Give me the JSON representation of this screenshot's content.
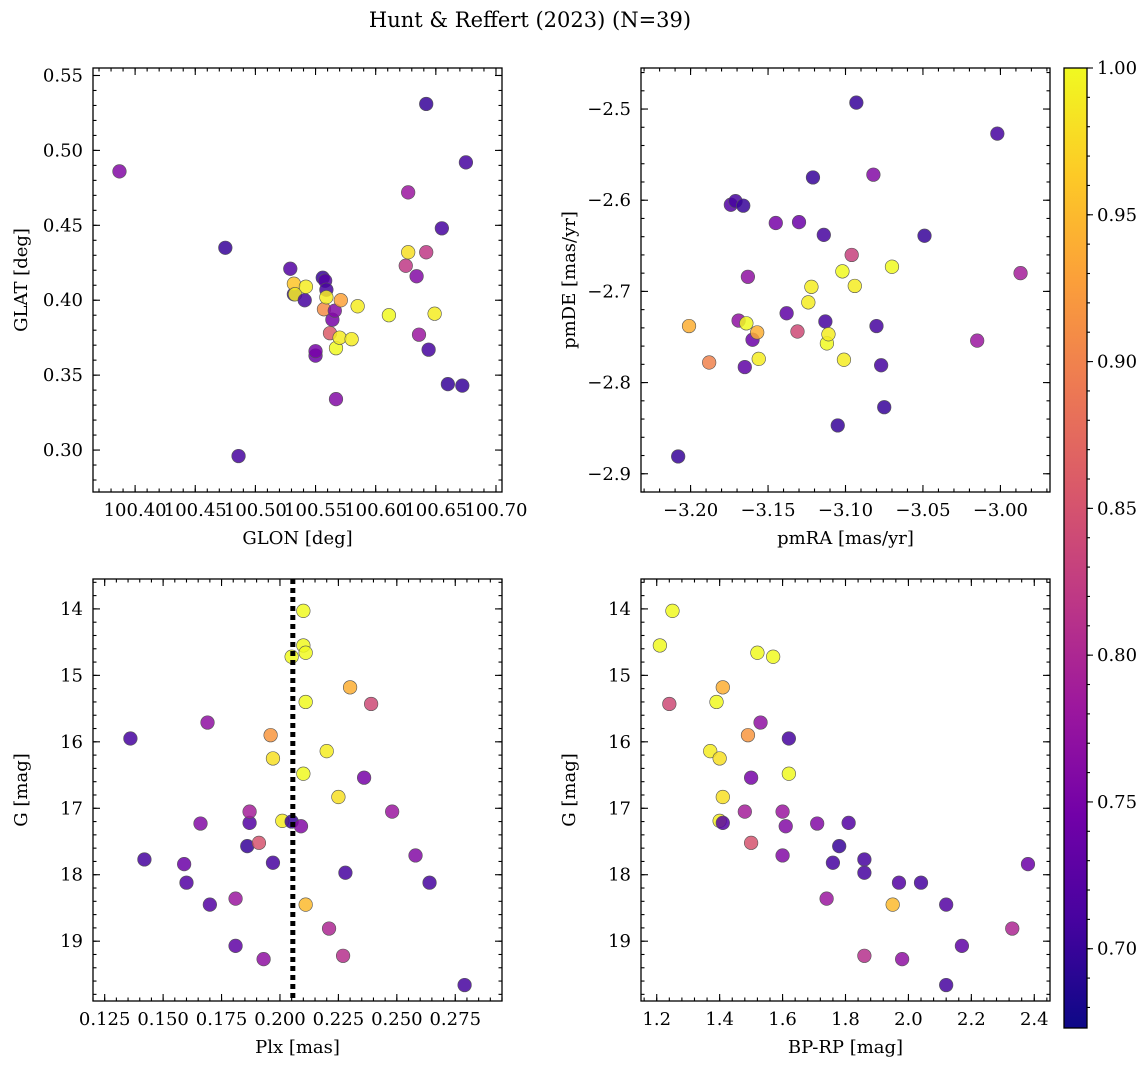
{
  "title": "Hunt & Reffert (2023) (N=39)",
  "colormap": [
    "#0d0887",
    "#46039f",
    "#7201a8",
    "#9c179e",
    "#bd3786",
    "#d8576b",
    "#ed7953",
    "#fb9f3a",
    "#fdca26",
    "#f0f921"
  ],
  "chart_data": [
    {
      "type": "scatter",
      "xlabel": "GLON [deg]",
      "ylabel": "GLAT [deg]",
      "xlim": [
        100.365,
        100.705
      ],
      "ylim": [
        0.272,
        0.555
      ],
      "xticks": [
        100.4,
        100.45,
        100.5,
        100.55,
        100.6,
        100.65,
        100.7
      ],
      "xtick_labels": [
        "100.40",
        "100.45",
        "100.50",
        "100.55",
        "100.60",
        "100.65",
        "100.70"
      ],
      "yticks": [
        0.3,
        0.35,
        0.4,
        0.45,
        0.5,
        0.55
      ],
      "ytick_labels": [
        "0.30",
        "0.35",
        "0.40",
        "0.45",
        "0.50",
        "0.55"
      ],
      "points": [
        {
          "x": 100.387,
          "y": 0.486,
          "c": 0.76
        },
        {
          "x": 100.475,
          "y": 0.435,
          "c": 0.7
        },
        {
          "x": 100.486,
          "y": 0.296,
          "c": 0.71
        },
        {
          "x": 100.529,
          "y": 0.421,
          "c": 0.72
        },
        {
          "x": 100.532,
          "y": 0.404,
          "c": 0.7
        },
        {
          "x": 100.532,
          "y": 0.411,
          "c": 0.96
        },
        {
          "x": 100.533,
          "y": 0.404,
          "c": 0.99
        },
        {
          "x": 100.541,
          "y": 0.4,
          "c": 0.71
        },
        {
          "x": 100.542,
          "y": 0.409,
          "c": 0.99
        },
        {
          "x": 100.55,
          "y": 0.363,
          "c": 0.74
        },
        {
          "x": 100.55,
          "y": 0.366,
          "c": 0.75
        },
        {
          "x": 100.556,
          "y": 0.415,
          "c": 0.7
        },
        {
          "x": 100.557,
          "y": 0.394,
          "c": 0.91
        },
        {
          "x": 100.558,
          "y": 0.413,
          "c": 0.72
        },
        {
          "x": 100.559,
          "y": 0.407,
          "c": 0.71
        },
        {
          "x": 100.559,
          "y": 0.402,
          "c": 0.99
        },
        {
          "x": 100.562,
          "y": 0.378,
          "c": 0.86
        },
        {
          "x": 100.564,
          "y": 0.387,
          "c": 0.75
        },
        {
          "x": 100.566,
          "y": 0.393,
          "c": 0.76
        },
        {
          "x": 100.567,
          "y": 0.334,
          "c": 0.76
        },
        {
          "x": 100.567,
          "y": 0.368,
          "c": 1.0
        },
        {
          "x": 100.57,
          "y": 0.375,
          "c": 0.99
        },
        {
          "x": 100.571,
          "y": 0.4,
          "c": 0.93
        },
        {
          "x": 100.58,
          "y": 0.374,
          "c": 0.99
        },
        {
          "x": 100.585,
          "y": 0.396,
          "c": 0.99
        },
        {
          "x": 100.611,
          "y": 0.39,
          "c": 1.0
        },
        {
          "x": 100.625,
          "y": 0.423,
          "c": 0.82
        },
        {
          "x": 100.627,
          "y": 0.432,
          "c": 0.98
        },
        {
          "x": 100.627,
          "y": 0.472,
          "c": 0.78
        },
        {
          "x": 100.634,
          "y": 0.416,
          "c": 0.76
        },
        {
          "x": 100.636,
          "y": 0.377,
          "c": 0.78
        },
        {
          "x": 100.642,
          "y": 0.432,
          "c": 0.82
        },
        {
          "x": 100.642,
          "y": 0.531,
          "c": 0.7
        },
        {
          "x": 100.644,
          "y": 0.367,
          "c": 0.71
        },
        {
          "x": 100.649,
          "y": 0.391,
          "c": 0.99
        },
        {
          "x": 100.655,
          "y": 0.448,
          "c": 0.71
        },
        {
          "x": 100.66,
          "y": 0.344,
          "c": 0.7
        },
        {
          "x": 100.672,
          "y": 0.343,
          "c": 0.7
        },
        {
          "x": 100.675,
          "y": 0.492,
          "c": 0.71
        }
      ]
    },
    {
      "type": "scatter",
      "xlabel": "pmRA [mas/yr]",
      "ylabel": "pmDE [mas/yr]",
      "xlim": [
        -3.232,
        -2.968
      ],
      "ylim": [
        -2.92,
        -2.455
      ],
      "xticks": [
        -3.2,
        -3.15,
        -3.1,
        -3.05,
        -3.0
      ],
      "xtick_labels": [
        "−3.20",
        "−3.15",
        "−3.10",
        "−3.05",
        "−3.00"
      ],
      "yticks": [
        -2.9,
        -2.8,
        -2.7,
        -2.6,
        -2.5
      ],
      "ytick_labels": [
        "−2.9",
        "−2.8",
        "−2.7",
        "−2.6",
        "−2.5"
      ],
      "points": [
        {
          "x": -3.208,
          "y": -2.881,
          "c": 0.7
        },
        {
          "x": -3.201,
          "y": -2.738,
          "c": 0.94
        },
        {
          "x": -3.188,
          "y": -2.778,
          "c": 0.9
        },
        {
          "x": -3.174,
          "y": -2.605,
          "c": 0.72
        },
        {
          "x": -3.171,
          "y": -2.601,
          "c": 0.71
        },
        {
          "x": -3.169,
          "y": -2.732,
          "c": 0.77
        },
        {
          "x": -3.166,
          "y": -2.606,
          "c": 0.7
        },
        {
          "x": -3.165,
          "y": -2.783,
          "c": 0.73
        },
        {
          "x": -3.164,
          "y": -2.735,
          "c": 1.0
        },
        {
          "x": -3.163,
          "y": -2.684,
          "c": 0.77
        },
        {
          "x": -3.16,
          "y": -2.753,
          "c": 0.74
        },
        {
          "x": -3.157,
          "y": -2.745,
          "c": 0.94
        },
        {
          "x": -3.156,
          "y": -2.774,
          "c": 0.99
        },
        {
          "x": -3.145,
          "y": -2.625,
          "c": 0.75
        },
        {
          "x": -3.138,
          "y": -2.724,
          "c": 0.73
        },
        {
          "x": -3.131,
          "y": -2.744,
          "c": 0.84
        },
        {
          "x": -3.13,
          "y": -2.624,
          "c": 0.74
        },
        {
          "x": -3.124,
          "y": -2.712,
          "c": 0.99
        },
        {
          "x": -3.122,
          "y": -2.695,
          "c": 0.99
        },
        {
          "x": -3.121,
          "y": -2.575,
          "c": 0.7
        },
        {
          "x": -3.114,
          "y": -2.638,
          "c": 0.71
        },
        {
          "x": -3.113,
          "y": -2.733,
          "c": 0.71
        },
        {
          "x": -3.112,
          "y": -2.757,
          "c": 1.0
        },
        {
          "x": -3.111,
          "y": -2.747,
          "c": 0.99
        },
        {
          "x": -3.105,
          "y": -2.847,
          "c": 0.7
        },
        {
          "x": -3.102,
          "y": -2.678,
          "c": 1.0
        },
        {
          "x": -3.101,
          "y": -2.775,
          "c": 0.99
        },
        {
          "x": -3.096,
          "y": -2.66,
          "c": 0.83
        },
        {
          "x": -3.094,
          "y": -2.694,
          "c": 0.99
        },
        {
          "x": -3.093,
          "y": -2.493,
          "c": 0.7
        },
        {
          "x": -3.082,
          "y": -2.572,
          "c": 0.76
        },
        {
          "x": -3.08,
          "y": -2.738,
          "c": 0.71
        },
        {
          "x": -3.077,
          "y": -2.781,
          "c": 0.71
        },
        {
          "x": -3.075,
          "y": -2.827,
          "c": 0.7
        },
        {
          "x": -3.07,
          "y": -2.673,
          "c": 1.0
        },
        {
          "x": -3.049,
          "y": -2.639,
          "c": 0.7
        },
        {
          "x": -3.015,
          "y": -2.754,
          "c": 0.78
        },
        {
          "x": -3.002,
          "y": -2.527,
          "c": 0.71
        },
        {
          "x": -2.987,
          "y": -2.68,
          "c": 0.79
        }
      ]
    },
    {
      "type": "scatter",
      "xlabel": "Plx [mas]",
      "ylabel": "G [mag]",
      "xlim": [
        0.12,
        0.295
      ],
      "ylim": [
        19.9,
        13.55
      ],
      "y_inverted": true,
      "xticks": [
        0.125,
        0.15,
        0.175,
        0.2,
        0.225,
        0.25,
        0.275
      ],
      "xtick_labels": [
        "0.125",
        "0.150",
        "0.175",
        "0.200",
        "0.225",
        "0.250",
        "0.275"
      ],
      "yticks": [
        14,
        15,
        16,
        17,
        18,
        19
      ],
      "ytick_labels": [
        "14",
        "15",
        "16",
        "17",
        "18",
        "19"
      ],
      "vline": 0.2055,
      "points": [
        {
          "x": 0.136,
          "y": 15.95,
          "c": 0.71
        },
        {
          "x": 0.142,
          "y": 17.77,
          "c": 0.71
        },
        {
          "x": 0.159,
          "y": 17.84,
          "c": 0.74
        },
        {
          "x": 0.16,
          "y": 18.12,
          "c": 0.72
        },
        {
          "x": 0.166,
          "y": 17.23,
          "c": 0.76
        },
        {
          "x": 0.169,
          "y": 15.71,
          "c": 0.77
        },
        {
          "x": 0.17,
          "y": 18.45,
          "c": 0.72
        },
        {
          "x": 0.181,
          "y": 18.36,
          "c": 0.78
        },
        {
          "x": 0.181,
          "y": 19.07,
          "c": 0.73
        },
        {
          "x": 0.186,
          "y": 17.57,
          "c": 0.7
        },
        {
          "x": 0.187,
          "y": 17.22,
          "c": 0.72
        },
        {
          "x": 0.187,
          "y": 17.05,
          "c": 0.79
        },
        {
          "x": 0.191,
          "y": 17.52,
          "c": 0.85
        },
        {
          "x": 0.193,
          "y": 19.27,
          "c": 0.77
        },
        {
          "x": 0.196,
          "y": 15.9,
          "c": 0.92
        },
        {
          "x": 0.197,
          "y": 16.25,
          "c": 0.98
        },
        {
          "x": 0.197,
          "y": 17.82,
          "c": 0.71
        },
        {
          "x": 0.201,
          "y": 17.19,
          "c": 0.99
        },
        {
          "x": 0.205,
          "y": 17.2,
          "c": 0.7
        },
        {
          "x": 0.205,
          "y": 14.72,
          "c": 1.0
        },
        {
          "x": 0.209,
          "y": 17.27,
          "c": 0.76
        },
        {
          "x": 0.21,
          "y": 14.03,
          "c": 1.0
        },
        {
          "x": 0.21,
          "y": 14.55,
          "c": 1.0
        },
        {
          "x": 0.21,
          "y": 16.48,
          "c": 1.0
        },
        {
          "x": 0.211,
          "y": 14.66,
          "c": 1.0
        },
        {
          "x": 0.211,
          "y": 15.4,
          "c": 1.0
        },
        {
          "x": 0.211,
          "y": 18.45,
          "c": 0.95
        },
        {
          "x": 0.22,
          "y": 16.14,
          "c": 0.99
        },
        {
          "x": 0.221,
          "y": 18.81,
          "c": 0.8
        },
        {
          "x": 0.225,
          "y": 16.83,
          "c": 0.98
        },
        {
          "x": 0.227,
          "y": 19.22,
          "c": 0.81
        },
        {
          "x": 0.228,
          "y": 17.97,
          "c": 0.71
        },
        {
          "x": 0.23,
          "y": 15.18,
          "c": 0.94
        },
        {
          "x": 0.236,
          "y": 16.54,
          "c": 0.75
        },
        {
          "x": 0.239,
          "y": 15.43,
          "c": 0.84
        },
        {
          "x": 0.248,
          "y": 17.05,
          "c": 0.78
        },
        {
          "x": 0.258,
          "y": 17.71,
          "c": 0.76
        },
        {
          "x": 0.264,
          "y": 18.12,
          "c": 0.71
        },
        {
          "x": 0.279,
          "y": 19.66,
          "c": 0.71
        }
      ]
    },
    {
      "type": "scatter",
      "xlabel": "BP-RP [mag]",
      "ylabel": "G [mag]",
      "xlim": [
        1.15,
        2.45
      ],
      "ylim": [
        19.9,
        13.55
      ],
      "y_inverted": true,
      "xticks": [
        1.2,
        1.4,
        1.6,
        1.8,
        2.0,
        2.2,
        2.4
      ],
      "xtick_labels": [
        "1.2",
        "1.4",
        "1.6",
        "1.8",
        "2.0",
        "2.2",
        "2.4"
      ],
      "yticks": [
        14,
        15,
        16,
        17,
        18,
        19
      ],
      "ytick_labels": [
        "14",
        "15",
        "16",
        "17",
        "18",
        "19"
      ],
      "points": [
        {
          "x": 1.21,
          "y": 14.55,
          "c": 1.0
        },
        {
          "x": 1.25,
          "y": 14.03,
          "c": 1.0
        },
        {
          "x": 1.24,
          "y": 15.43,
          "c": 0.84
        },
        {
          "x": 1.37,
          "y": 16.14,
          "c": 0.99
        },
        {
          "x": 1.39,
          "y": 15.4,
          "c": 1.0
        },
        {
          "x": 1.4,
          "y": 16.25,
          "c": 0.98
        },
        {
          "x": 1.41,
          "y": 15.18,
          "c": 0.94
        },
        {
          "x": 1.41,
          "y": 16.83,
          "c": 0.98
        },
        {
          "x": 1.4,
          "y": 17.19,
          "c": 0.99
        },
        {
          "x": 1.41,
          "y": 17.22,
          "c": 0.72
        },
        {
          "x": 1.48,
          "y": 17.05,
          "c": 0.79
        },
        {
          "x": 1.49,
          "y": 15.9,
          "c": 0.92
        },
        {
          "x": 1.5,
          "y": 16.54,
          "c": 0.75
        },
        {
          "x": 1.5,
          "y": 17.52,
          "c": 0.85
        },
        {
          "x": 1.52,
          "y": 14.66,
          "c": 1.0
        },
        {
          "x": 1.53,
          "y": 15.71,
          "c": 0.77
        },
        {
          "x": 1.57,
          "y": 14.72,
          "c": 1.0
        },
        {
          "x": 1.6,
          "y": 17.05,
          "c": 0.78
        },
        {
          "x": 1.6,
          "y": 17.71,
          "c": 0.76
        },
        {
          "x": 1.61,
          "y": 17.27,
          "c": 0.76
        },
        {
          "x": 1.62,
          "y": 15.95,
          "c": 0.71
        },
        {
          "x": 1.62,
          "y": 16.48,
          "c": 1.0
        },
        {
          "x": 1.71,
          "y": 17.23,
          "c": 0.76
        },
        {
          "x": 1.74,
          "y": 18.36,
          "c": 0.78
        },
        {
          "x": 1.76,
          "y": 17.82,
          "c": 0.71
        },
        {
          "x": 1.78,
          "y": 17.57,
          "c": 0.7
        },
        {
          "x": 1.81,
          "y": 17.22,
          "c": 0.72
        },
        {
          "x": 1.86,
          "y": 17.77,
          "c": 0.71
        },
        {
          "x": 1.86,
          "y": 17.97,
          "c": 0.71
        },
        {
          "x": 1.86,
          "y": 19.22,
          "c": 0.81
        },
        {
          "x": 1.95,
          "y": 18.45,
          "c": 0.95
        },
        {
          "x": 1.97,
          "y": 18.12,
          "c": 0.72
        },
        {
          "x": 1.98,
          "y": 19.27,
          "c": 0.77
        },
        {
          "x": 2.04,
          "y": 18.12,
          "c": 0.71
        },
        {
          "x": 2.12,
          "y": 18.45,
          "c": 0.72
        },
        {
          "x": 2.12,
          "y": 19.66,
          "c": 0.71
        },
        {
          "x": 2.17,
          "y": 19.07,
          "c": 0.73
        },
        {
          "x": 2.33,
          "y": 18.81,
          "c": 0.8
        },
        {
          "x": 2.38,
          "y": 17.84,
          "c": 0.74
        }
      ]
    }
  ],
  "colorbar": {
    "range": [
      0.673,
      1.0
    ],
    "ticks": [
      0.7,
      0.75,
      0.8,
      0.85,
      0.9,
      0.95,
      1.0
    ],
    "tick_labels": [
      "0.70",
      "0.75",
      "0.80",
      "0.85",
      "0.90",
      "0.95",
      "1.00"
    ]
  }
}
